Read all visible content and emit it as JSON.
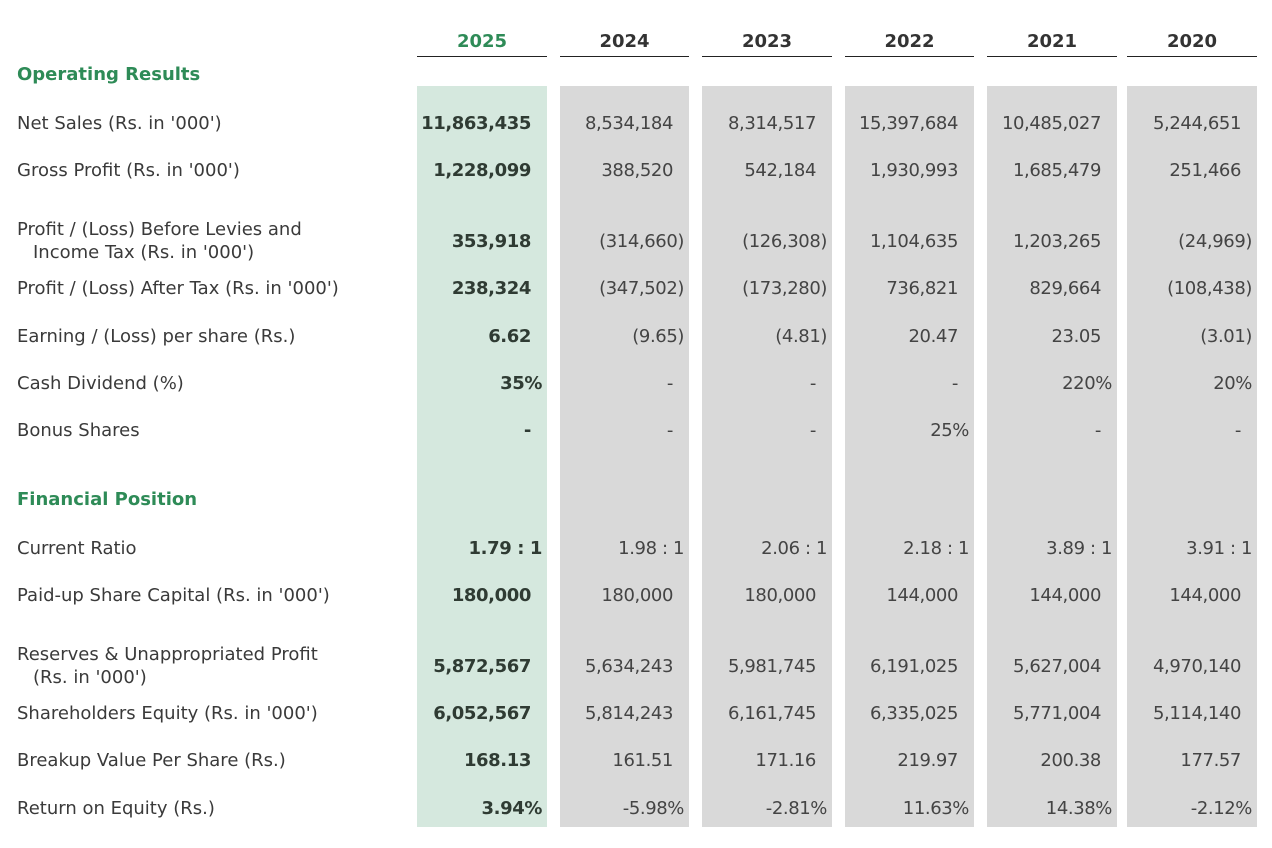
{
  "years": [
    "2025",
    "2024",
    "2023",
    "2022",
    "2021",
    "2020"
  ],
  "highlight_color": "#2e8b57",
  "sections": {
    "operating": "Operating Results",
    "financial": "Financial Position"
  },
  "rows": [
    {
      "label": "Net Sales (Rs. in '000')",
      "values": [
        "11,863,435",
        "8,534,184",
        "8,314,517",
        "15,397,684",
        "10,485,027",
        "5,244,651"
      ]
    },
    {
      "label": "Gross Profit (Rs. in '000')",
      "values": [
        "1,228,099",
        "388,520",
        "542,184",
        "1,930,993",
        "1,685,479",
        "251,466"
      ]
    },
    {
      "label": "Profit / (Loss) Before Levies and",
      "label2": "Income Tax (Rs. in '000')",
      "values": [
        "353,918",
        "(314,660)",
        "(126,308)",
        "1,104,635",
        "1,203,265",
        "(24,969)"
      ]
    },
    {
      "label": "Profit / (Loss) After Tax (Rs. in '000')",
      "values": [
        "238,324",
        "(347,502)",
        "(173,280)",
        "736,821",
        "829,664",
        "(108,438)"
      ]
    },
    {
      "label": "Earning / (Loss) per share (Rs.)",
      "values": [
        "6.62",
        "(9.65)",
        "(4.81)",
        "20.47",
        "23.05",
        "(3.01)"
      ]
    },
    {
      "label": "Cash Dividend (%)",
      "values": [
        "35%",
        "-",
        "-",
        "-",
        "220%",
        "20%"
      ]
    },
    {
      "label": "Bonus Shares",
      "values": [
        "-",
        "-",
        "-",
        "25%",
        "-",
        "-"
      ]
    },
    {
      "label": "Current Ratio",
      "values": [
        "1.79 : 1",
        "1.98 : 1",
        "2.06 : 1",
        "2.18 : 1",
        "3.89 : 1",
        "3.91 : 1"
      ]
    },
    {
      "label": "Paid-up Share Capital (Rs. in '000')",
      "values": [
        "180,000",
        "180,000",
        "180,000",
        "144,000",
        "144,000",
        "144,000"
      ]
    },
    {
      "label": "Reserves & Unappropriated Profit",
      "label2": "(Rs. in '000')",
      "values": [
        "5,872,567",
        "5,634,243",
        "5,981,745",
        "6,191,025",
        "5,627,004",
        "4,970,140"
      ]
    },
    {
      "label": "Shareholders Equity (Rs. in '000')",
      "values": [
        "6,052,567",
        "5,814,243",
        "6,161,745",
        "6,335,025",
        "5,771,004",
        "5,114,140"
      ]
    },
    {
      "label": "Breakup Value Per Share (Rs.)",
      "values": [
        "168.13",
        "161.51",
        "171.16",
        "219.97",
        "200.38",
        "177.57"
      ]
    },
    {
      "label": "Return on Equity (Rs.)",
      "values": [
        "3.94%",
        "-5.98%",
        "-2.81%",
        "11.63%",
        "14.38%",
        "-2.12%"
      ]
    }
  ]
}
